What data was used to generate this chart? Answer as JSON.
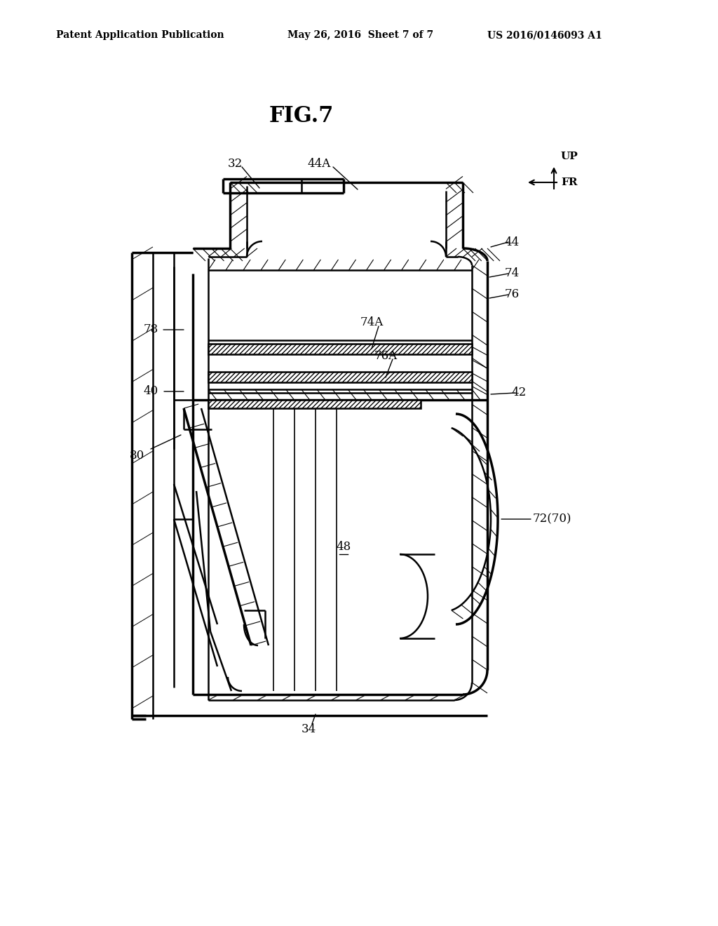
{
  "header_left": "Patent Application Publication",
  "header_mid": "May 26, 2016  Sheet 7 of 7",
  "header_right": "US 2016/0146093 A1",
  "fig_title": "FIG.7",
  "background_color": "#ffffff"
}
